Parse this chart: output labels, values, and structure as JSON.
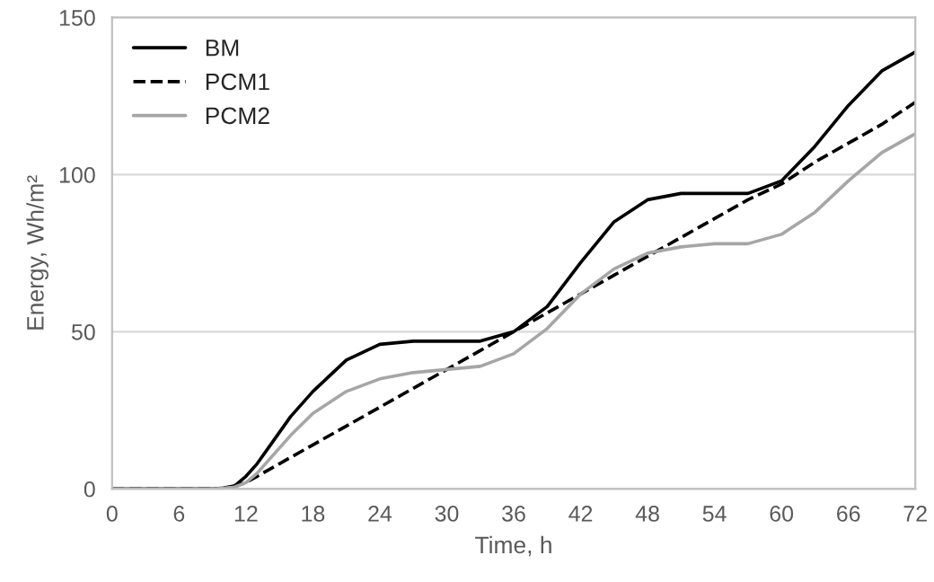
{
  "chart_data": {
    "type": "line",
    "xlabel": "Time, h",
    "ylabel": "Energy, Wh/m²",
    "x": [
      0,
      3,
      6,
      9,
      10,
      11,
      12,
      13,
      14,
      15,
      16,
      18,
      21,
      24,
      27,
      30,
      33,
      36,
      39,
      42,
      45,
      48,
      51,
      54,
      57,
      60,
      63,
      66,
      69,
      72
    ],
    "series": [
      {
        "name": "BM",
        "color": "#000000",
        "line_style": "solid",
        "values": [
          0,
          0,
          0,
          0,
          0.3,
          1,
          4,
          8,
          13,
          18,
          23,
          31,
          41,
          46,
          47,
          47,
          47,
          50,
          58,
          72,
          85,
          92,
          94,
          94,
          94,
          98,
          109,
          122,
          133,
          139
        ]
      },
      {
        "name": "PCM1",
        "color": "#000000",
        "line_style": "dashed",
        "values": [
          0,
          0,
          0,
          0,
          0.2,
          0.8,
          2,
          4,
          6,
          8,
          10,
          14,
          20,
          26,
          32,
          38,
          44,
          50,
          56,
          62,
          68,
          74,
          80,
          86,
          92,
          97,
          104,
          110,
          116,
          123
        ]
      },
      {
        "name": "PCM2",
        "color": "#a6a6a6",
        "line_style": "solid",
        "values": [
          0,
          0,
          0,
          0,
          0.2,
          0.6,
          2,
          5,
          9,
          13,
          17,
          24,
          31,
          35,
          37,
          38,
          39,
          43,
          51,
          62,
          70,
          75,
          77,
          78,
          78,
          81,
          88,
          98,
          107,
          113
        ]
      }
    ],
    "xlim": [
      0,
      72
    ],
    "xticks": [
      0,
      6,
      12,
      18,
      24,
      30,
      36,
      42,
      48,
      54,
      60,
      66,
      72
    ],
    "ylim": [
      0,
      150
    ],
    "yticks": [
      0,
      50,
      100,
      150
    ],
    "grid": "y",
    "legend": "top left",
    "marker": "none"
  }
}
